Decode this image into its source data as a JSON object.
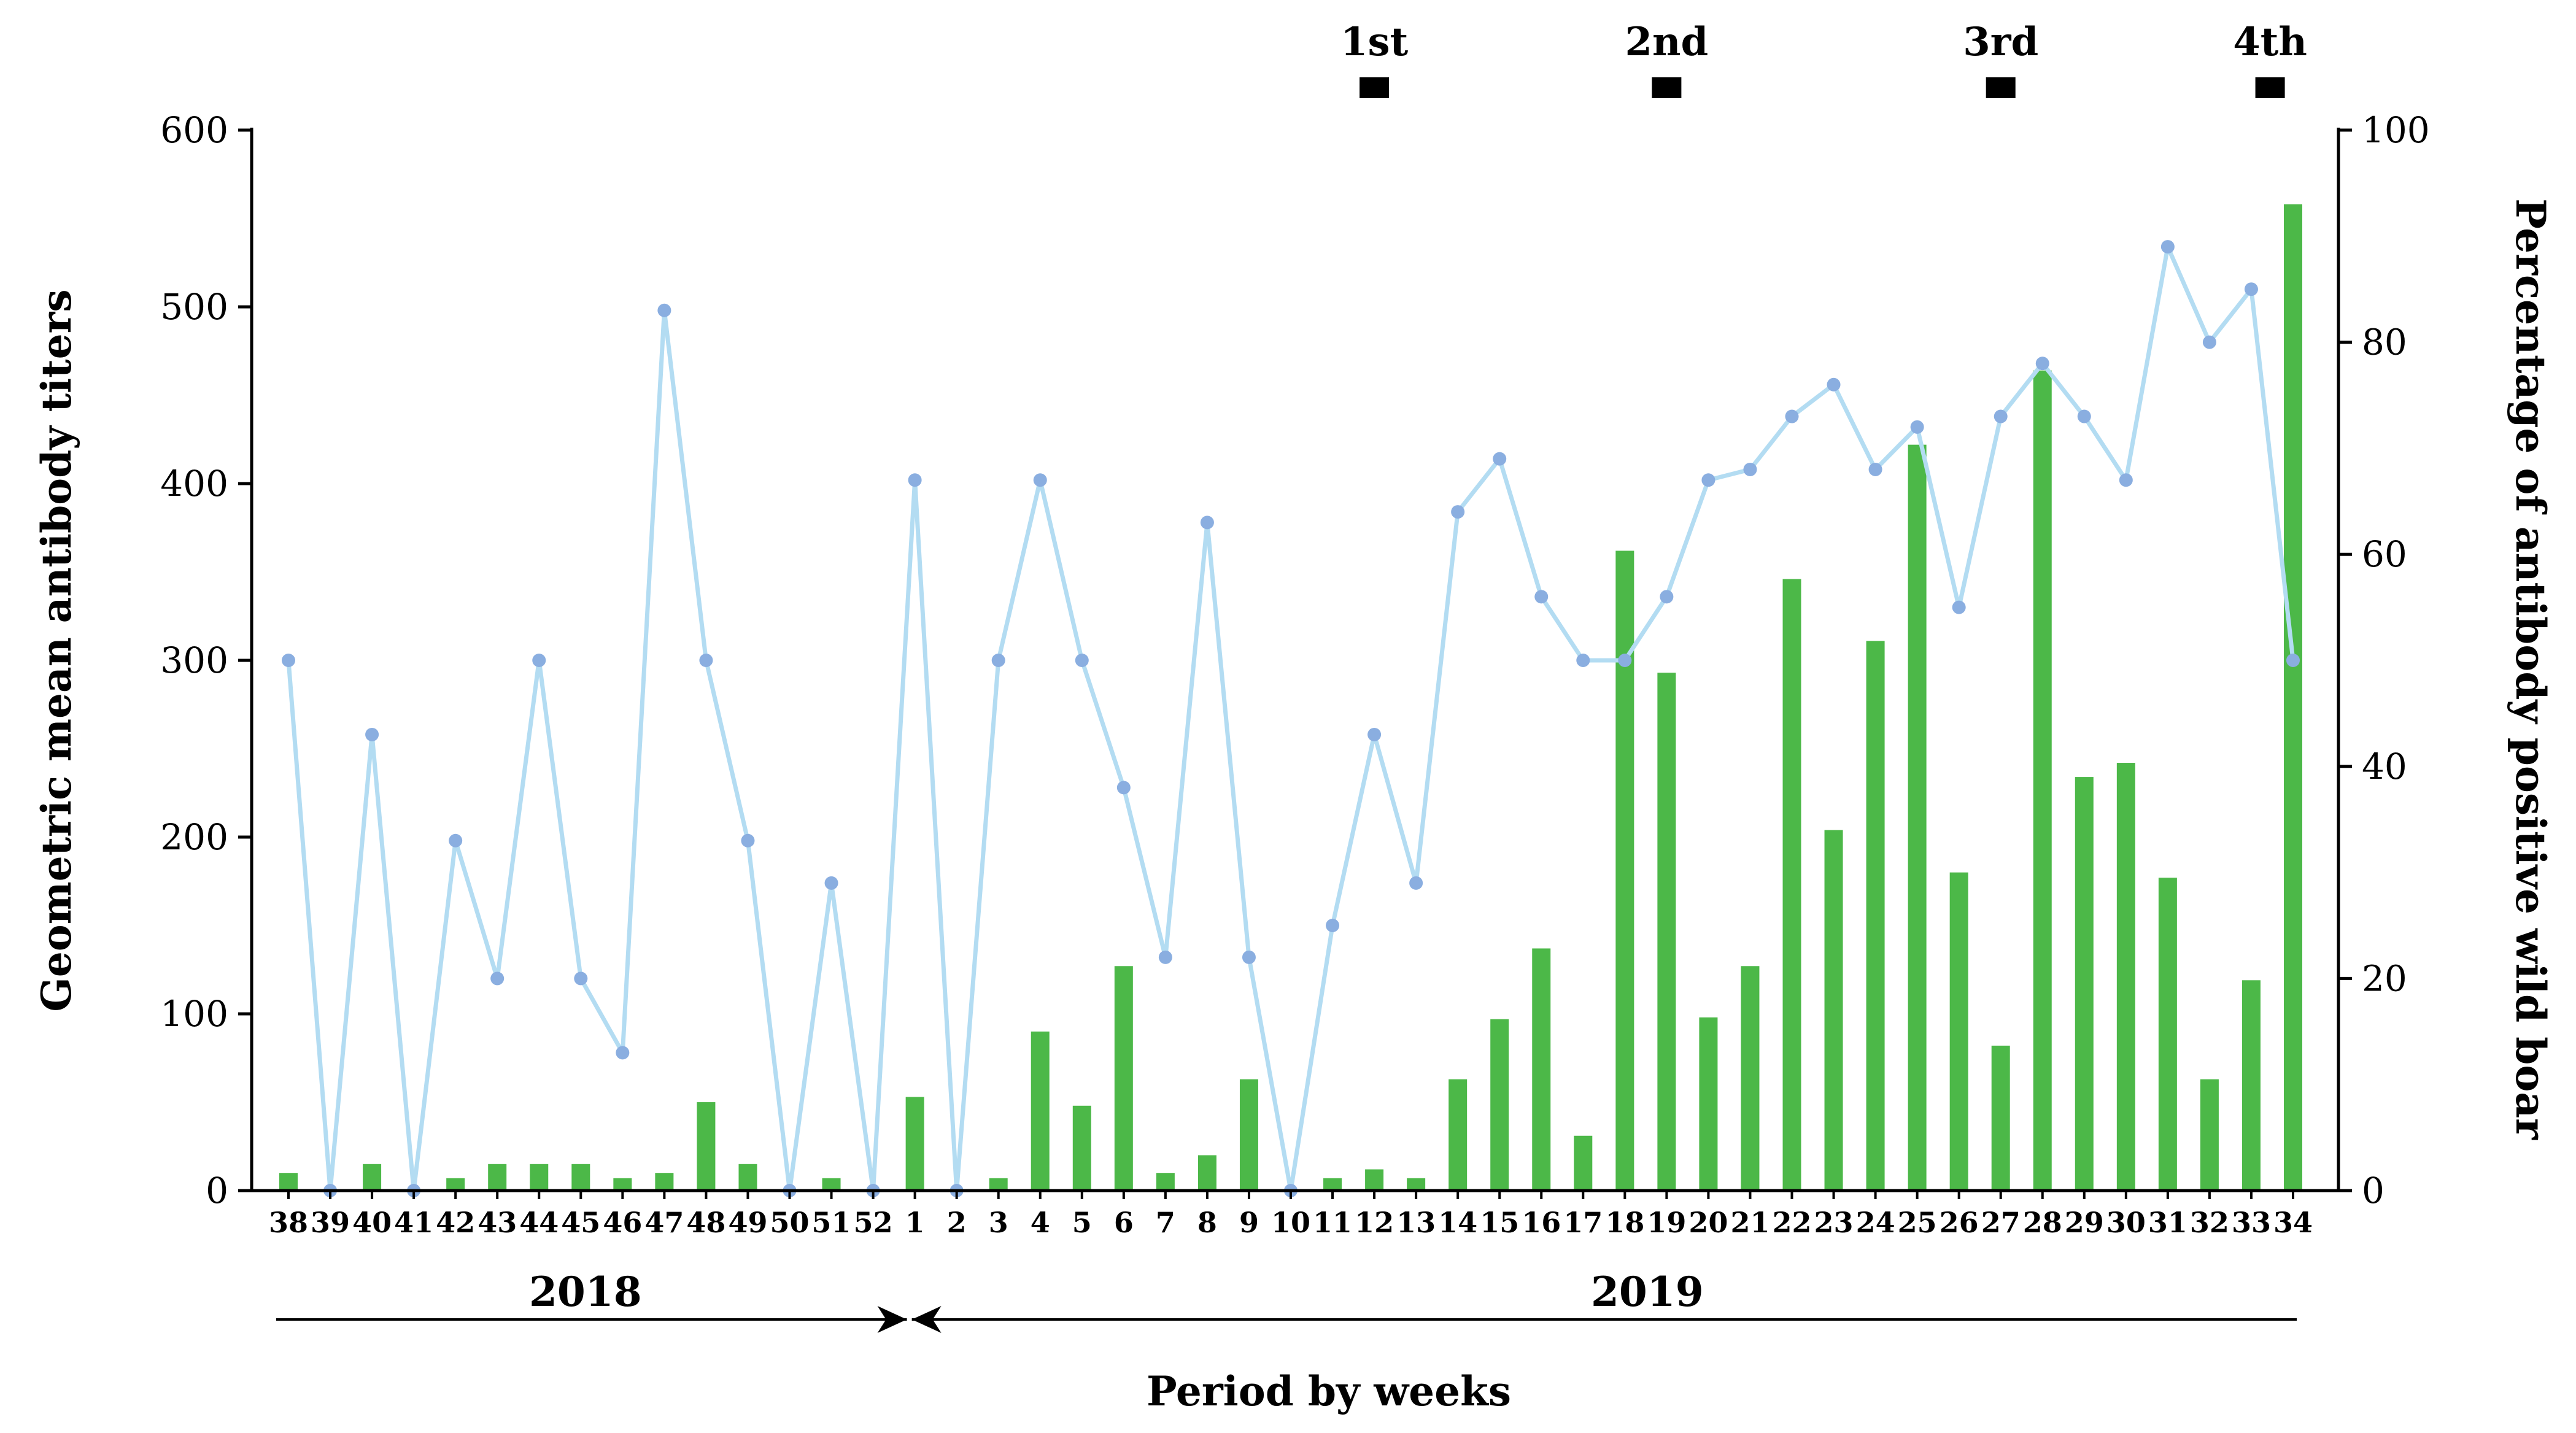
{
  "chart_data": {
    "type": "bar+line",
    "title": "",
    "xlabel": "Period by weeks",
    "ylabel_left": "Geometric mean antibody titers",
    "ylabel_right": "Percentage of antibody positive wild boar",
    "ylim_left": [
      0,
      600
    ],
    "ylim_right": [
      0,
      100
    ],
    "yticks_left": [
      0,
      100,
      200,
      300,
      400,
      500,
      600
    ],
    "yticks_right": [
      0,
      20,
      40,
      60,
      80,
      100
    ],
    "categories": [
      "38",
      "39",
      "40",
      "41",
      "42",
      "43",
      "44",
      "45",
      "46",
      "47",
      "48",
      "49",
      "50",
      "51",
      "52",
      "1",
      "2",
      "3",
      "4",
      "5",
      "6",
      "7",
      "8",
      "9",
      "10",
      "11",
      "12",
      "13",
      "14",
      "15",
      "16",
      "17",
      "18",
      "19",
      "20",
      "21",
      "22",
      "23",
      "24",
      "25",
      "26",
      "27",
      "28",
      "29",
      "30",
      "31",
      "32",
      "33",
      "34"
    ],
    "series": [
      {
        "name": "Geometric mean antibody titers",
        "type": "bar",
        "axis": "left",
        "color": "#4cb848",
        "values": [
          10,
          0,
          15,
          0,
          7,
          15,
          15,
          15,
          7,
          10,
          50,
          15,
          0,
          7,
          0,
          53,
          0,
          7,
          90,
          48,
          127,
          10,
          20,
          63,
          0,
          7,
          12,
          7,
          63,
          97,
          137,
          31,
          362,
          293,
          98,
          127,
          346,
          204,
          311,
          422,
          180,
          82,
          464,
          234,
          242,
          177,
          63,
          119,
          558
        ]
      },
      {
        "name": "Percentage of antibody positive wild boar",
        "type": "line",
        "axis": "right",
        "color": "#b3dcf2",
        "marker_color": "#8aaee0",
        "values": [
          50,
          0,
          43,
          0,
          33,
          20,
          50,
          20,
          13,
          83,
          50,
          33,
          0,
          29,
          0,
          67,
          0,
          50,
          67,
          50,
          38,
          22,
          63,
          22,
          0,
          25,
          43,
          29,
          64,
          69,
          56,
          50,
          50,
          56,
          67,
          68,
          73,
          76,
          68,
          72,
          55,
          73,
          78,
          73,
          67,
          89,
          80,
          85,
          50
        ]
      }
    ],
    "year_labels": [
      {
        "label": "2018",
        "from": "38",
        "to": "52"
      },
      {
        "label": "2019",
        "from": "1",
        "to": "34"
      }
    ],
    "markers": [
      {
        "label": "1st",
        "week": "12"
      },
      {
        "label": "2nd",
        "week": "19"
      },
      {
        "label": "3rd",
        "week": "27"
      },
      {
        "label": "4th",
        "week": "33"
      }
    ]
  }
}
